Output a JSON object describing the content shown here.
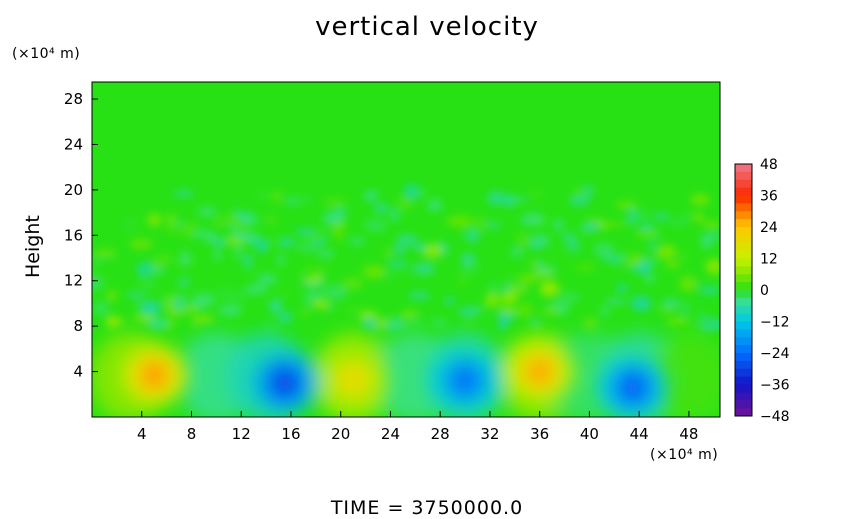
{
  "chart_data": {
    "type": "heatmap",
    "title": "vertical velocity",
    "ylabel": "Height",
    "xlabel": "",
    "x_unit": "(×10⁴ m)",
    "y_unit": "(×10⁴ m)",
    "footer": "TIME  =  3750000.0",
    "x_ticks": [
      4,
      8,
      12,
      16,
      20,
      24,
      28,
      32,
      36,
      40,
      44,
      48
    ],
    "y_ticks": [
      4,
      8,
      12,
      16,
      20,
      24,
      28
    ],
    "xlim": [
      0,
      50.5
    ],
    "ylim": [
      0,
      29.5
    ],
    "colorbar": {
      "ticks": [
        48,
        36,
        24,
        12,
        0,
        -12,
        -24,
        -36,
        -48
      ],
      "range": [
        -48,
        48
      ]
    },
    "features": [
      {
        "x": 5,
        "y": 3.7,
        "value": 30
      },
      {
        "x": 21,
        "y": 3.3,
        "value": 20
      },
      {
        "x": 36,
        "y": 4.0,
        "value": 28
      },
      {
        "x": 15.5,
        "y": 3.0,
        "value": -32
      },
      {
        "x": 30,
        "y": 3.2,
        "value": -25
      },
      {
        "x": 43.5,
        "y": 2.6,
        "value": -28
      }
    ]
  }
}
